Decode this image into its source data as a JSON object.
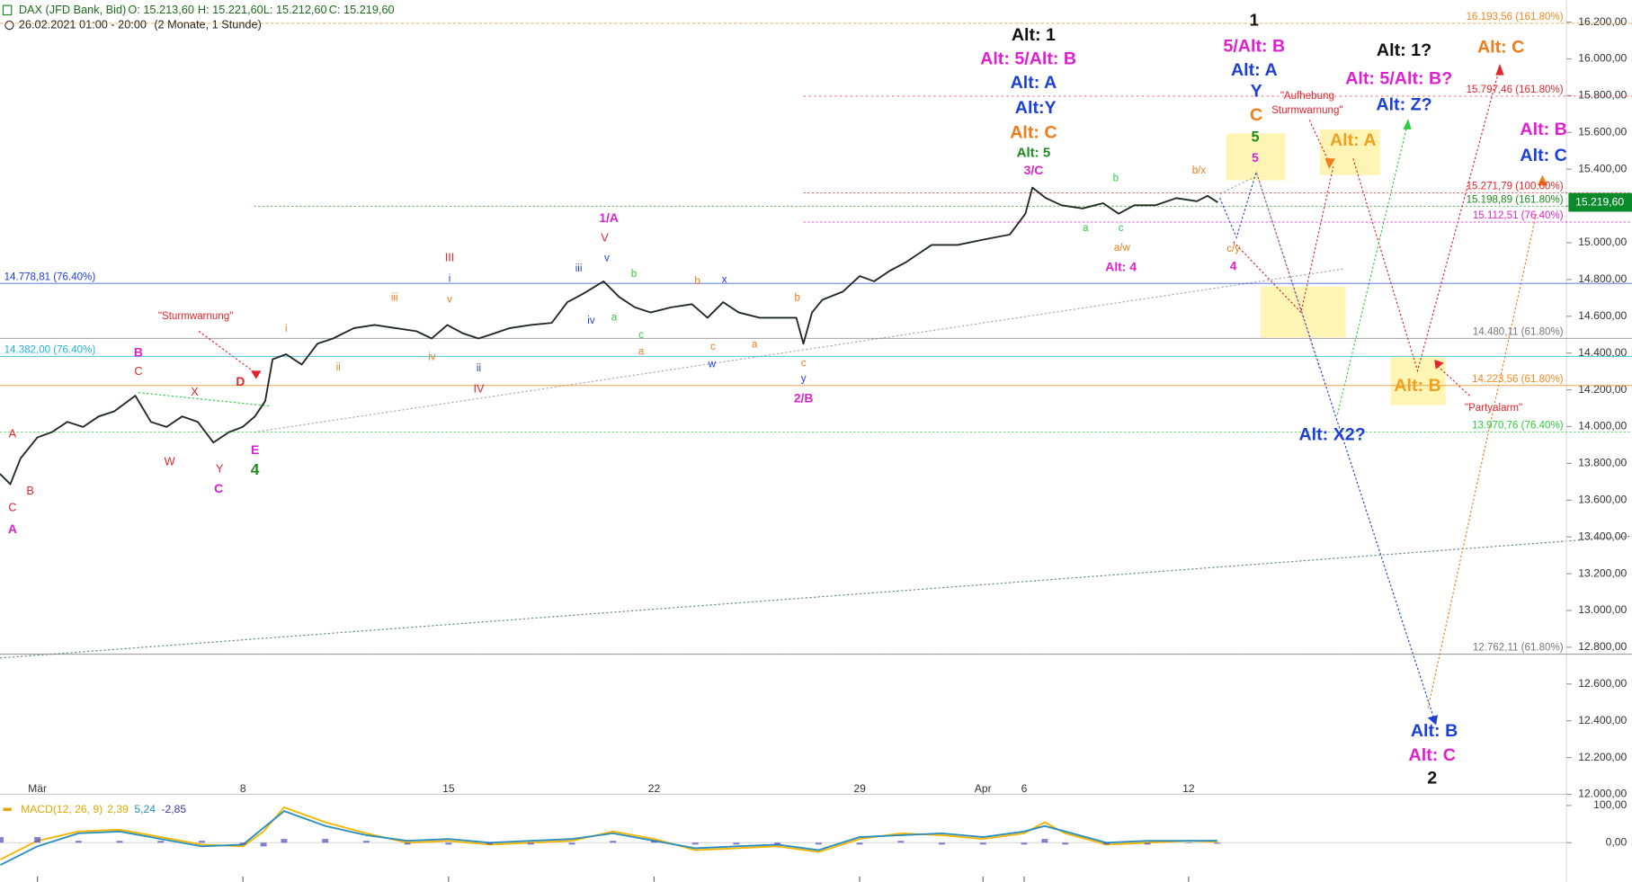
{
  "header": {
    "symbol": "DAX (JFD Bank, Bid)",
    "open": "O: 15.213,60",
    "high": "H: 15.221,60",
    "low": "L: 15.212,60",
    "close": "C: 15.219,60",
    "range": "26.02.2021 01:00 - 20:00",
    "period": "(2 Monate, 1 Stunde)"
  },
  "chart_data": [
    {
      "type": "line",
      "x": [
        -0.91,
        -0.66,
        -0.41,
        0,
        0.35,
        0.73,
        1.11,
        1.49,
        1.87,
        2.38,
        2.76,
        3.14,
        3.52,
        3.9,
        4.28,
        4.66,
        4.99,
        5.29,
        5.54,
        5.72,
        6.05,
        6.43,
        6.81,
        7.19,
        7.7,
        8.2,
        8.71,
        9.22,
        9.59,
        9.97,
        10.35,
        10.73,
        11.11,
        11.49,
        12,
        12.51,
        12.89,
        13.27,
        13.77,
        14.15,
        14.53,
        14.91,
        15.42,
        15.92,
        16.3,
        16.68,
        17.06,
        17.57,
        18.08,
        18.46,
        18.63,
        18.84,
        19.09,
        19.59,
        20,
        20.35,
        20.73,
        21.11,
        21.75,
        22.38,
        23.01,
        23.65,
        24.03,
        24.2,
        24.53,
        24.91,
        25.42,
        25.92,
        26.3,
        26.68,
        27.19,
        27.7,
        28.2,
        28.46,
        28.71
      ],
      "series": [
        {
          "color": "#1f2a1f",
          "values": [
            13743,
            13687,
            13828,
            13941,
            13970,
            14026,
            13998,
            14055,
            14083,
            14168,
            14026,
            13998,
            14055,
            14026,
            13913,
            13970,
            13998,
            14055,
            14139,
            14366,
            14394,
            14338,
            14451,
            14479,
            14536,
            14553,
            14536,
            14519,
            14479,
            14553,
            14507,
            14479,
            14507,
            14536,
            14553,
            14564,
            14677,
            14722,
            14790,
            14705,
            14649,
            14621,
            14649,
            14666,
            14592,
            14677,
            14621,
            14592,
            14592,
            14592,
            14451,
            14621,
            14689,
            14734,
            14819,
            14790,
            14847,
            14892,
            14988,
            14988,
            15017,
            15045,
            15158,
            15300,
            15243,
            15204,
            15187,
            15215,
            15158,
            15204,
            15204,
            15243,
            15226,
            15255,
            15219.6
          ]
        }
      ],
      "xlim": [
        -0.91,
        37.19
      ],
      "ylim": [
        12000,
        16200
      ],
      "xticks": [
        {
          "value": 0,
          "label": "Mär"
        },
        {
          "value": 5,
          "label": "8"
        },
        {
          "value": 10,
          "label": "15"
        },
        {
          "value": 15,
          "label": "22"
        },
        {
          "value": 20,
          "label": "29"
        },
        {
          "value": 23,
          "label": "Apr"
        },
        {
          "value": 24,
          "label": "6"
        },
        {
          "value": 28,
          "label": "12"
        }
      ],
      "yticks": [
        {
          "value": 12000,
          "label": "12.000,00"
        },
        {
          "value": 12200,
          "label": "12.200,00"
        },
        {
          "value": 12400,
          "label": "12.400,00"
        },
        {
          "value": 12600,
          "label": "12.600,00"
        },
        {
          "value": 12800,
          "label": "12.800,00"
        },
        {
          "value": 13000,
          "label": "13.000,00"
        },
        {
          "value": 13200,
          "label": "13.200,00"
        },
        {
          "value": 13400,
          "label": "13.400,00"
        },
        {
          "value": 13600,
          "label": "13.600,00"
        },
        {
          "value": 13800,
          "label": "13.800,00"
        },
        {
          "value": 14000,
          "label": "14.000,00"
        },
        {
          "value": 14200,
          "label": "14.200,00"
        },
        {
          "value": 14400,
          "label": "14.400,00"
        },
        {
          "value": 14600,
          "label": "14.600,00"
        },
        {
          "value": 14800,
          "label": "14.800,00"
        },
        {
          "value": 15000,
          "label": "15.000,00"
        },
        {
          "value": 15200,
          "label": "15.200,00"
        },
        {
          "value": 15400,
          "label": "15.400,00"
        },
        {
          "value": 15600,
          "label": "15.600,00"
        },
        {
          "value": 15800,
          "label": "15.800,00"
        },
        {
          "value": 16000,
          "label": "16.000,00"
        },
        {
          "value": 16200,
          "label": "16.200,00"
        }
      ],
      "last_price": {
        "value": 15219.6,
        "label": "15.219,60",
        "color": "#0b8a2c"
      },
      "levels": [
        {
          "value": 16193.56,
          "label": "16.193,56 (161.80%)",
          "color": "#f08a24"
        },
        {
          "value": 15797.46,
          "label": "15.797,46 (161.80%)",
          "color": "#e3242b"
        },
        {
          "value": 15271.79,
          "label": "15.271,79 (100.00%)",
          "color": "#e3242b"
        },
        {
          "value": 15198.89,
          "label": "15.198,89 (161.80%)",
          "color": "#1c8a1c"
        },
        {
          "value": 15112.51,
          "label": "15.112,51 (76.40%)",
          "color": "#e020d0"
        },
        {
          "value": 14778.81,
          "label": "14.778,81 (76.40%)",
          "color": "#1c3fd6"
        },
        {
          "value": 14480.11,
          "label": "14.480,11 (61.80%)",
          "color": "#777777"
        },
        {
          "value": 14382,
          "label": "14.382,00 (76.40%)",
          "color": "#1fb5d6"
        },
        {
          "value": 14223.56,
          "label": "14.223,56 (61.80%)",
          "color": "#f08a24"
        },
        {
          "value": 13970.76,
          "label": "13.970,76 (76.40%)",
          "color": "#2ecc40"
        },
        {
          "value": 12762.11,
          "label": "12.762,11 (61.80%)",
          "color": "#777777"
        }
      ],
      "annotations": [
        {
          "text": "A",
          "color": "#e3242b"
        },
        {
          "text": "B",
          "color": "#e3242b"
        },
        {
          "text": "C",
          "color": "#e3242b"
        },
        {
          "text": "A",
          "color": "#e020d0"
        },
        {
          "text": "B",
          "color": "#e020d0"
        },
        {
          "text": "C",
          "color": "#e3242b"
        },
        {
          "text": "X",
          "color": "#e3242b"
        },
        {
          "text": "W",
          "color": "#e3242b"
        },
        {
          "text": "Y",
          "color": "#e3242b"
        },
        {
          "text": "C",
          "color": "#e020d0"
        },
        {
          "text": "D",
          "color": "#e3242b"
        },
        {
          "text": "E",
          "color": "#e020d0"
        },
        {
          "text": "4",
          "color": "#1c8a1c"
        },
        {
          "text": "\"Sturmwarnung\"",
          "color": "#e3242b"
        },
        {
          "text": "i",
          "color": "#f07d1a"
        },
        {
          "text": "ii",
          "color": "#f07d1a"
        },
        {
          "text": "iii",
          "color": "#f07d1a"
        },
        {
          "text": "iv",
          "color": "#f07d1a"
        },
        {
          "text": "III",
          "color": "#e3242b"
        },
        {
          "text": "i",
          "color": "#1c3fd6"
        },
        {
          "text": "v",
          "color": "#f07d1a"
        },
        {
          "text": "ii",
          "color": "#1c3fd6"
        },
        {
          "text": "IV",
          "color": "#e3242b"
        },
        {
          "text": "1/A",
          "color": "#e020d0"
        },
        {
          "text": "V",
          "color": "#e3242b"
        },
        {
          "text": "v",
          "color": "#1c3fd6"
        },
        {
          "text": "iii",
          "color": "#1c3fd6"
        },
        {
          "text": "b",
          "color": "#2ecc40"
        },
        {
          "text": "iv",
          "color": "#1c3fd6"
        },
        {
          "text": "a",
          "color": "#2ecc40"
        },
        {
          "text": "c",
          "color": "#2ecc40"
        },
        {
          "text": "a",
          "color": "#f07d1a"
        },
        {
          "text": "b",
          "color": "#f07d1a"
        },
        {
          "text": "x",
          "color": "#1c3fd6"
        },
        {
          "text": "c",
          "color": "#f07d1a"
        },
        {
          "text": "w",
          "color": "#1c3fd6"
        },
        {
          "text": "a",
          "color": "#f07d1a"
        },
        {
          "text": "b",
          "color": "#f07d1a"
        },
        {
          "text": "c",
          "color": "#f07d1a"
        },
        {
          "text": "y",
          "color": "#1c3fd6"
        },
        {
          "text": "2/B",
          "color": "#e020d0"
        },
        {
          "text": "Alt: 1",
          "color": "#111111"
        },
        {
          "text": "Alt: 5/Alt: B",
          "color": "#e020d0"
        },
        {
          "text": "Alt: A",
          "color": "#1c3fd6"
        },
        {
          "text": "Alt:Y",
          "color": "#1c3fd6"
        },
        {
          "text": "Alt: C",
          "color": "#f07d1a"
        },
        {
          "text": "Alt: 5",
          "color": "#1c8a1c"
        },
        {
          "text": "3/C",
          "color": "#e020d0"
        },
        {
          "text": "b",
          "color": "#2ecc40"
        },
        {
          "text": "a",
          "color": "#2ecc40"
        },
        {
          "text": "c",
          "color": "#2ecc40"
        },
        {
          "text": "a/w",
          "color": "#f07d1a"
        },
        {
          "text": "Alt: 4",
          "color": "#e020d0"
        },
        {
          "text": "b/x",
          "color": "#f07d1a"
        },
        {
          "text": "c/y",
          "color": "#f07d1a"
        },
        {
          "text": "4",
          "color": "#e020d0"
        },
        {
          "text": "1",
          "color": "#111111"
        },
        {
          "text": "5/Alt: B",
          "color": "#e020d0"
        },
        {
          "text": "Alt: A",
          "color": "#1c3fd6"
        },
        {
          "text": "Y",
          "color": "#1c3fd6"
        },
        {
          "text": "C",
          "color": "#f07d1a"
        },
        {
          "text": "5",
          "color": "#1c8a1c"
        },
        {
          "text": "5",
          "color": "#e020d0"
        },
        {
          "text": "\"Aufhebung",
          "color": "#e3242b"
        },
        {
          "text": "Sturmwarnung\"",
          "color": "#e3242b"
        },
        {
          "text": "Alt: 1?",
          "color": "#111111"
        },
        {
          "text": "Alt: 5/Alt: B?",
          "color": "#e020d0"
        },
        {
          "text": "Alt: Z?",
          "color": "#1c3fd6"
        },
        {
          "text": "Alt: A",
          "color": "#f0a020"
        },
        {
          "text": "Alt: C",
          "color": "#f07d1a"
        },
        {
          "text": "Alt: B",
          "color": "#e020d0"
        },
        {
          "text": "Alt: C",
          "color": "#1c3fd6"
        },
        {
          "text": "Alt: X2?",
          "color": "#1c3fd6"
        },
        {
          "text": "Alt: B",
          "color": "#f0a020"
        },
        {
          "text": "\"Partyalarm\"",
          "color": "#e3242b"
        },
        {
          "text": "Alt: B",
          "color": "#1c3fd6"
        },
        {
          "text": "Alt: C",
          "color": "#e020d0"
        },
        {
          "text": "2",
          "color": "#111111"
        }
      ]
    },
    {
      "type": "line",
      "title": "MACD(12, 26, 9)",
      "title_color": "#e0a800",
      "x": [
        -0.9,
        0,
        1,
        2,
        3,
        4,
        5,
        5.5,
        6,
        7,
        8,
        9,
        10,
        11,
        12,
        13,
        14,
        15,
        16,
        17,
        18,
        19,
        20,
        21,
        22,
        23,
        24,
        24.5,
        25,
        26,
        27,
        28,
        28.7
      ],
      "series": [
        {
          "color": "#f5b400",
          "values": [
            -45,
            5,
            30,
            35,
            15,
            -5,
            -10,
            30,
            95,
            55,
            25,
            0,
            5,
            -5,
            0,
            5,
            30,
            10,
            -20,
            -15,
            -10,
            -25,
            10,
            25,
            20,
            10,
            25,
            55,
            25,
            -5,
            0,
            5,
            2.39
          ]
        },
        {
          "color": "#2a8fbd",
          "values": [
            -60,
            -10,
            25,
            30,
            10,
            -10,
            -5,
            40,
            85,
            45,
            20,
            5,
            10,
            0,
            5,
            10,
            25,
            5,
            -15,
            -10,
            -5,
            -20,
            15,
            20,
            25,
            15,
            30,
            45,
            30,
            0,
            5,
            5,
            5.24
          ]
        },
        {
          "type": "bar",
          "color": "#4a4ac0",
          "values": [
            15,
            15,
            5,
            5,
            5,
            5,
            -5,
            -10,
            10,
            10,
            5,
            -5,
            -5,
            -5,
            -5,
            -5,
            5,
            5,
            -5,
            -5,
            -5,
            -5,
            -5,
            5,
            -5,
            -5,
            -5,
            10,
            -5,
            -5,
            -5,
            0,
            -2.85
          ]
        }
      ],
      "readouts": [
        {
          "value": 2.39,
          "label": "2,39",
          "color": "#e0a800"
        },
        {
          "value": 5.24,
          "label": "5,24",
          "color": "#2a8fbd"
        },
        {
          "value": -2.85,
          "label": "-2,85",
          "color": "#3b3bb5"
        }
      ],
      "xlim": [
        -0.91,
        37.19
      ],
      "ylim": [
        -105,
        116
      ],
      "yticks": [
        {
          "value": 100,
          "label": "100,00"
        },
        {
          "value": 0,
          "label": "0,00"
        }
      ]
    }
  ]
}
